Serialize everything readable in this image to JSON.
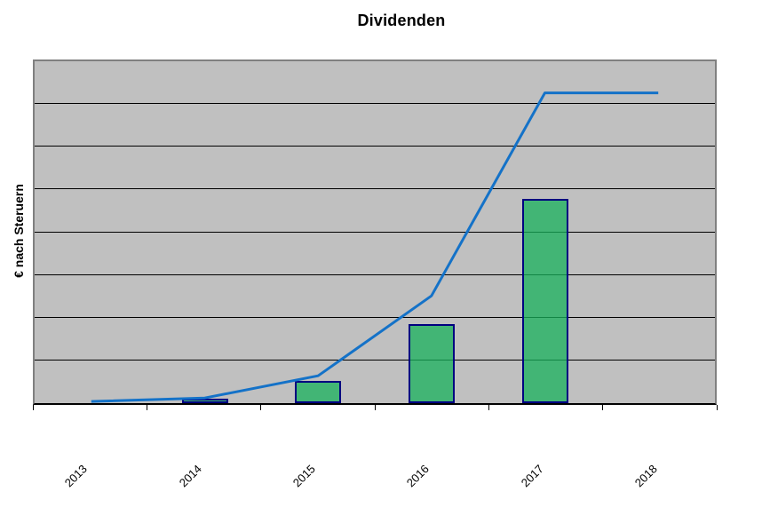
{
  "chart_data": {
    "type": "combo",
    "title": "Dividenden",
    "xlabel": "",
    "ylabel": "€ nach Steruern",
    "categories": [
      "2013",
      "2014",
      "2015",
      "2016",
      "2017",
      "2018"
    ],
    "series": [
      {
        "name": "bars",
        "type": "bar",
        "values": [
          0,
          0.11,
          0.52,
          1.84,
          4.77,
          0
        ]
      },
      {
        "name": "line",
        "type": "line",
        "values": [
          0.04,
          0.12,
          0.64,
          2.51,
          7.26,
          7.26
        ]
      }
    ],
    "ylim": [
      0,
      8
    ],
    "y_gridline_step": 1,
    "y_tick_labels_visible": false,
    "x_tick_marks": "category-boundaries",
    "x_label_rotation_deg": 45,
    "legend": "none",
    "grid": "horizontal"
  },
  "colors": {
    "plot_background": "#C0C0C0",
    "plot_border": "#808080",
    "axis_line": "#000000",
    "gridline": "#000000",
    "bar_fill": "#18B15C",
    "bar_fill_alpha": 0.75,
    "bar_border": "#000080",
    "trend_line": "#1472C8",
    "title_color": "#000000"
  }
}
